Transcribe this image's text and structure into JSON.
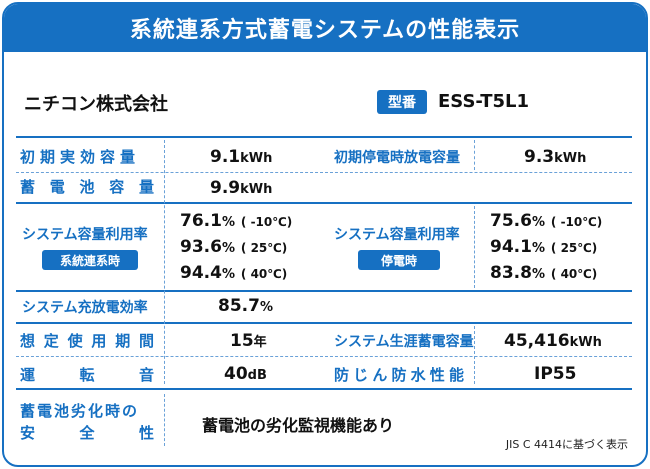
{
  "title": "系統連系方式蓄電システムの性能表示",
  "company": "ニチコン株式会社",
  "model": {
    "badge": "型番",
    "value": "ESS-T5L1"
  },
  "rows": {
    "initial_capacity": {
      "label": "初期実効容量",
      "value": "9.1",
      "unit": "kWh"
    },
    "initial_outage_capacity": {
      "label": "初期停電時放電容量",
      "value": "9.3",
      "unit": "kWh"
    },
    "battery_capacity": {
      "label": "蓄電池容量",
      "value": "9.9",
      "unit": "kWh"
    },
    "utilization_grid": {
      "label": "システム容量利用率",
      "badge": "系統連系時",
      "values": [
        {
          "value": "76.1",
          "unit": "%",
          "cond": "( -10℃)"
        },
        {
          "value": "93.6",
          "unit": "%",
          "cond": "( 25℃)"
        },
        {
          "value": "94.4",
          "unit": "%",
          "cond": "( 40℃)"
        }
      ]
    },
    "utilization_outage": {
      "label": "システム容量利用率",
      "badge": "停電時",
      "values": [
        {
          "value": "75.6",
          "unit": "%",
          "cond": "( -10℃)"
        },
        {
          "value": "94.1",
          "unit": "%",
          "cond": "( 25℃)"
        },
        {
          "value": "83.8",
          "unit": "%",
          "cond": "( 40℃)"
        }
      ]
    },
    "charge_efficiency": {
      "label": "システム充放電効率",
      "value": "85.7",
      "unit": "%"
    },
    "expected_life": {
      "label": "想定使用期間",
      "value": "15",
      "unit": "年"
    },
    "lifetime_storage": {
      "label": "システム生涯蓄電容量",
      "value": "45,416",
      "unit": "kWh"
    },
    "noise": {
      "label_chars": [
        "運",
        "転",
        "音"
      ],
      "value": "40",
      "unit": "dB"
    },
    "waterproof": {
      "label": "防じん防水性能",
      "value": "IP55"
    },
    "degradation_safety": {
      "label_line1": "蓄電池劣化時の",
      "label_line2_chars": [
        "安",
        "全",
        "性"
      ],
      "value": "蓄電池の劣化監視機能あり"
    }
  },
  "note": "JIS C 4414に基づく表示",
  "colors": {
    "accent": "#1670c2",
    "dotted": "#6aa1d8"
  }
}
